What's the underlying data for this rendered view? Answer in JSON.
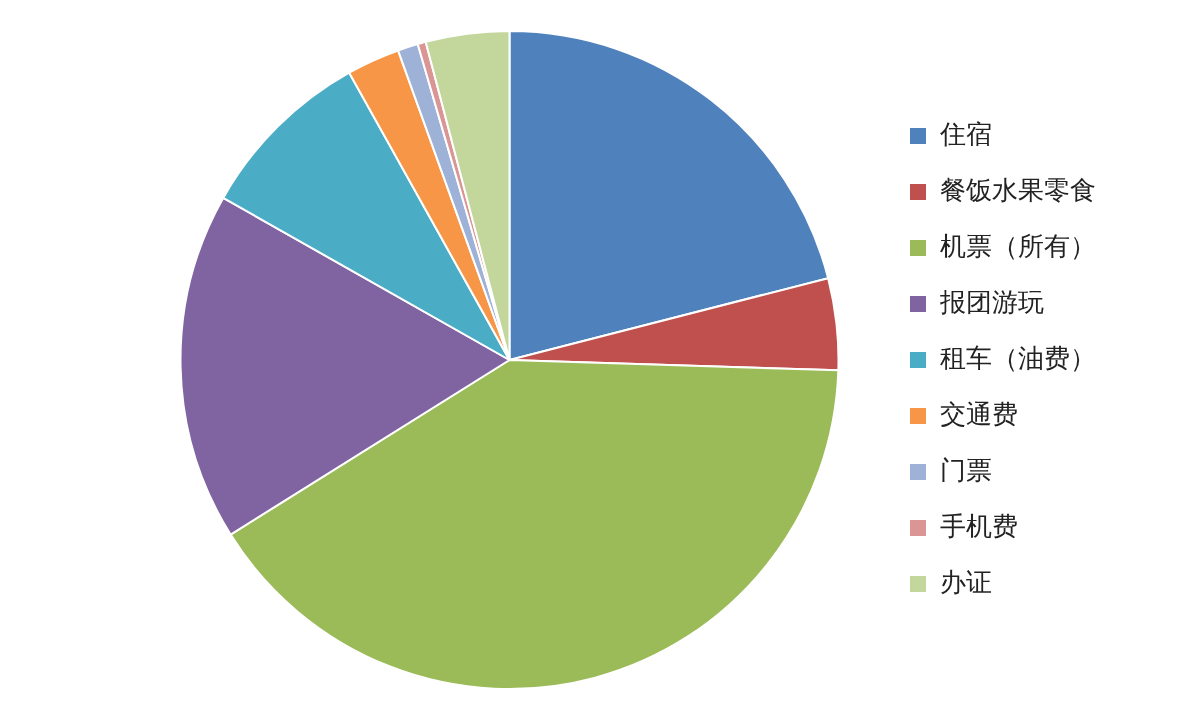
{
  "chart_data": {
    "type": "pie",
    "categories": [
      "住宿",
      "餐饭水果零食",
      "机票（所有）",
      "报团游玩",
      "租车（油费）",
      "交通费",
      "门票",
      "手机费",
      "办证"
    ],
    "values": [
      21,
      4.5,
      40.6,
      17.1,
      8.7,
      2.6,
      1,
      0.4,
      4.1
    ],
    "colors": [
      "#4f81bd",
      "#c0504d",
      "#9bbb59",
      "#8064a2",
      "#4bacc6",
      "#f79646",
      "#9eb1d6",
      "#d99694",
      "#c3d69b"
    ],
    "legend": "right"
  }
}
